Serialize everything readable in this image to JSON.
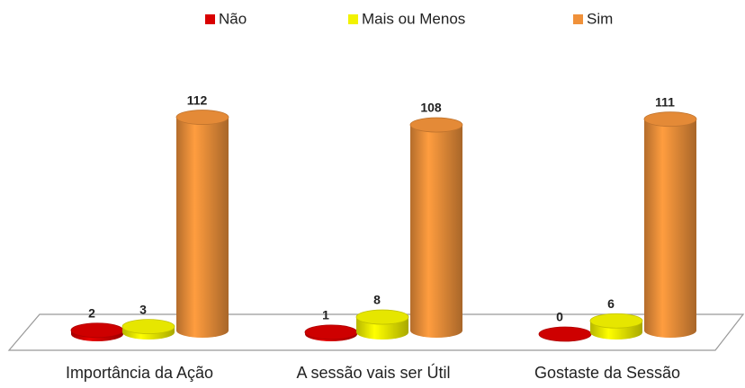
{
  "chart_data": {
    "type": "bar3d",
    "categories": [
      "Importância da Ação",
      "A sessão vais ser Útil",
      "Gostaste da Sessão"
    ],
    "series": [
      {
        "name": "Não",
        "color": "#d90000",
        "values": [
          2,
          1,
          0
        ]
      },
      {
        "name": "Mais ou Menos",
        "color": "#f2f200",
        "values": [
          3,
          8,
          6
        ]
      },
      {
        "name": "Sim",
        "color": "#f0913a",
        "values": [
          112,
          108,
          111
        ]
      }
    ],
    "legend": "top"
  }
}
